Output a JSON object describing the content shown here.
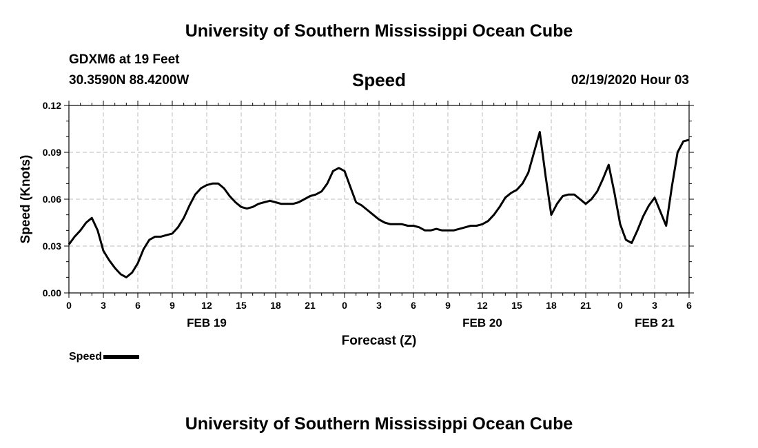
{
  "header": {
    "title_top": "University of Southern Mississippi Ocean Cube",
    "station": "GDXM6 at 19 Feet",
    "location": "30.3590N 88.4200W",
    "variable": "Speed",
    "datetime": "02/19/2020 Hour 03"
  },
  "footer": {
    "title_bottom": "University of Southern Mississippi Ocean Cube"
  },
  "legend": {
    "label": "Speed"
  },
  "chart_data": {
    "type": "line",
    "title": "Speed",
    "xlabel": "Forecast (Z)",
    "ylabel": "Speed (Knots)",
    "xlim": [
      0,
      54
    ],
    "ylim": [
      0,
      0.12
    ],
    "grid": true,
    "x_ticks": [
      "0",
      "3",
      "6",
      "9",
      "12",
      "15",
      "18",
      "21",
      "0",
      "3",
      "6",
      "9",
      "12",
      "15",
      "18",
      "21",
      "0",
      "3",
      "6"
    ],
    "y_ticks": [
      "0.00",
      "0.03",
      "0.06",
      "0.09",
      "0.12"
    ],
    "day_labels": [
      {
        "label": "FEB 19",
        "at_hour": 12
      },
      {
        "label": "FEB 20",
        "at_hour": 36
      },
      {
        "label": "FEB 21",
        "at_hour": 51
      }
    ],
    "series": [
      {
        "name": "Speed",
        "x": [
          0,
          0.5,
          1,
          1.5,
          2,
          2.5,
          3,
          3.5,
          4,
          4.5,
          5,
          5.5,
          6,
          6.5,
          7,
          7.5,
          8,
          8.5,
          9,
          9.5,
          10,
          10.5,
          11,
          11.5,
          12,
          12.5,
          13,
          13.5,
          14,
          14.5,
          15,
          15.5,
          16,
          16.5,
          17,
          17.5,
          18,
          18.5,
          19,
          19.5,
          20,
          20.5,
          21,
          21.5,
          22,
          22.5,
          23,
          23.5,
          24,
          24.5,
          25,
          25.5,
          26,
          26.5,
          27,
          27.5,
          28,
          28.5,
          29,
          29.5,
          30,
          30.5,
          31,
          31.5,
          32,
          32.5,
          33,
          33.5,
          34,
          34.5,
          35,
          35.5,
          36,
          36.5,
          37,
          37.5,
          38,
          38.5,
          39,
          39.5,
          40,
          40.5,
          41,
          41.5,
          42,
          42.5,
          43,
          43.5,
          44,
          44.5,
          45,
          45.5,
          46,
          46.5,
          47,
          47.5,
          48,
          48.5,
          49,
          49.5,
          50,
          50.5,
          51,
          51.5,
          52,
          52.5,
          53,
          53.5,
          54
        ],
        "values": [
          0.031,
          0.036,
          0.04,
          0.045,
          0.048,
          0.04,
          0.027,
          0.021,
          0.016,
          0.012,
          0.01,
          0.013,
          0.019,
          0.028,
          0.034,
          0.036,
          0.036,
          0.037,
          0.038,
          0.042,
          0.048,
          0.056,
          0.063,
          0.067,
          0.069,
          0.07,
          0.07,
          0.067,
          0.062,
          0.058,
          0.055,
          0.054,
          0.055,
          0.057,
          0.058,
          0.059,
          0.058,
          0.057,
          0.057,
          0.057,
          0.058,
          0.06,
          0.062,
          0.063,
          0.065,
          0.07,
          0.078,
          0.08,
          0.078,
          0.068,
          0.058,
          0.056,
          0.053,
          0.05,
          0.047,
          0.045,
          0.044,
          0.044,
          0.044,
          0.043,
          0.043,
          0.042,
          0.04,
          0.04,
          0.041,
          0.04,
          0.04,
          0.04,
          0.041,
          0.042,
          0.043,
          0.043,
          0.044,
          0.046,
          0.05,
          0.055,
          0.061,
          0.064,
          0.066,
          0.07,
          0.077,
          0.09,
          0.103,
          0.075,
          0.05,
          0.057,
          0.062,
          0.063,
          0.063,
          0.06,
          0.057,
          0.06,
          0.065,
          0.073,
          0.082,
          0.064,
          0.044,
          0.034,
          0.032,
          0.04,
          0.049,
          0.056,
          0.061,
          0.052,
          0.043,
          0.068,
          0.09,
          0.097,
          0.098
        ]
      }
    ]
  }
}
